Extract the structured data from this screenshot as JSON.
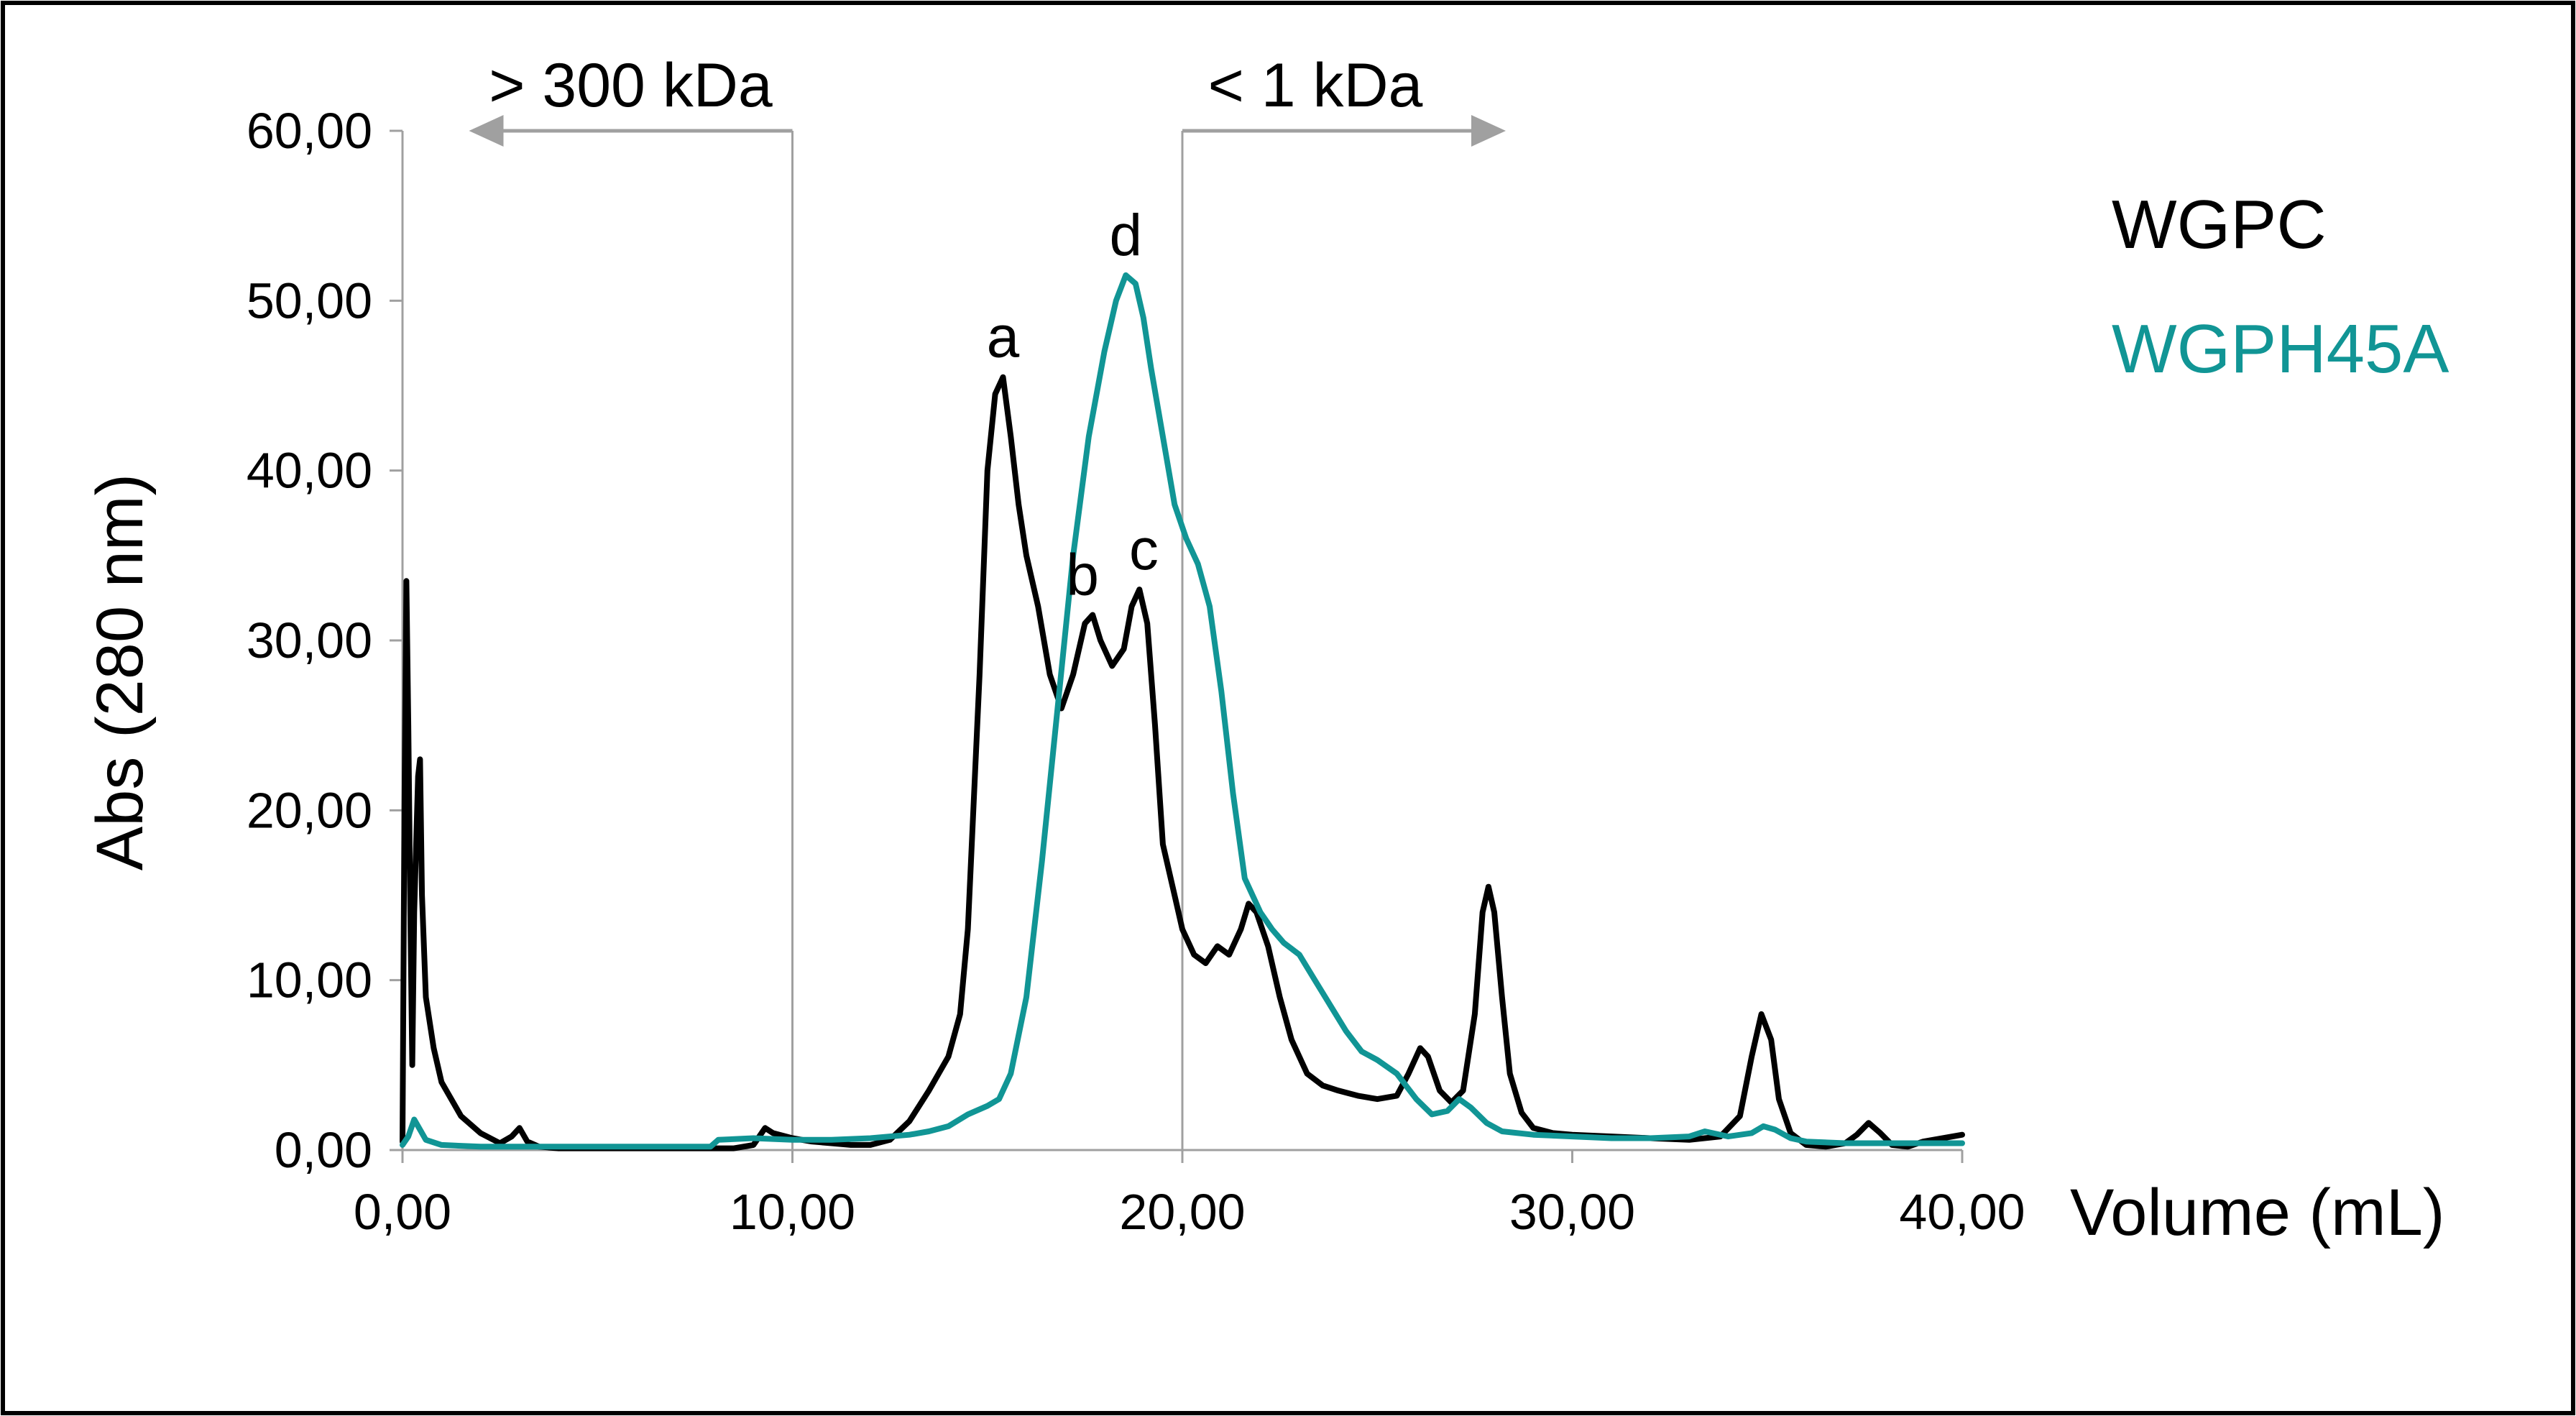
{
  "chart_data": {
    "type": "line",
    "xlabel": "Volume (mL)",
    "ylabel": "Abs (280 nm)",
    "xlim": [
      0,
      40
    ],
    "ylim": [
      0,
      60
    ],
    "xticks": [
      0,
      10,
      20,
      30,
      40
    ],
    "xtick_labels": [
      "0,00",
      "10,00",
      "20,00",
      "30,00",
      "40,00"
    ],
    "yticks": [
      0,
      10,
      20,
      30,
      40,
      50,
      60
    ],
    "ytick_labels": [
      "0,00",
      "10,00",
      "20,00",
      "30,00",
      "40,00",
      "50,00",
      "60,00"
    ],
    "grid": false,
    "legend_position": "top-right",
    "series": [
      {
        "name": "WGPC",
        "color": "#000000",
        "points": [
          [
            0,
            0.5
          ],
          [
            0.05,
            20
          ],
          [
            0.1,
            33.5
          ],
          [
            0.15,
            25
          ],
          [
            0.2,
            14
          ],
          [
            0.25,
            5
          ],
          [
            0.3,
            14
          ],
          [
            0.4,
            22
          ],
          [
            0.45,
            23
          ],
          [
            0.5,
            15
          ],
          [
            0.6,
            9
          ],
          [
            0.8,
            6
          ],
          [
            1,
            4
          ],
          [
            1.5,
            2
          ],
          [
            2,
            1
          ],
          [
            2.5,
            0.4
          ],
          [
            2.8,
            0.8
          ],
          [
            3,
            1.3
          ],
          [
            3.2,
            0.5
          ],
          [
            3.5,
            0.2
          ],
          [
            4,
            0.1
          ],
          [
            5,
            0.1
          ],
          [
            6,
            0.1
          ],
          [
            7,
            0.1
          ],
          [
            8,
            0.1
          ],
          [
            8.5,
            0.1
          ],
          [
            9,
            0.3
          ],
          [
            9.3,
            1.3
          ],
          [
            9.5,
            1
          ],
          [
            10,
            0.7
          ],
          [
            10.5,
            0.5
          ],
          [
            11,
            0.4
          ],
          [
            11.5,
            0.3
          ],
          [
            12,
            0.3
          ],
          [
            12.5,
            0.6
          ],
          [
            13,
            1.7
          ],
          [
            13.5,
            3.5
          ],
          [
            14,
            5.5
          ],
          [
            14.3,
            8
          ],
          [
            14.5,
            13
          ],
          [
            14.8,
            28
          ],
          [
            15,
            40
          ],
          [
            15.2,
            44.5
          ],
          [
            15.4,
            45.5
          ],
          [
            15.6,
            42
          ],
          [
            15.8,
            38
          ],
          [
            16,
            35
          ],
          [
            16.3,
            32
          ],
          [
            16.6,
            28
          ],
          [
            16.9,
            26
          ],
          [
            17.2,
            28
          ],
          [
            17.5,
            31
          ],
          [
            17.7,
            31.5
          ],
          [
            17.9,
            30
          ],
          [
            18.2,
            28.5
          ],
          [
            18.5,
            29.5
          ],
          [
            18.7,
            32
          ],
          [
            18.9,
            33
          ],
          [
            19.1,
            31
          ],
          [
            19.3,
            25
          ],
          [
            19.5,
            18
          ],
          [
            19.8,
            15
          ],
          [
            20,
            13
          ],
          [
            20.3,
            11.5
          ],
          [
            20.6,
            11
          ],
          [
            20.9,
            12
          ],
          [
            21.2,
            11.5
          ],
          [
            21.5,
            13
          ],
          [
            21.7,
            14.5
          ],
          [
            21.9,
            14
          ],
          [
            22.2,
            12
          ],
          [
            22.5,
            9
          ],
          [
            22.8,
            6.5
          ],
          [
            23.2,
            4.5
          ],
          [
            23.6,
            3.8
          ],
          [
            24,
            3.5
          ],
          [
            24.5,
            3.2
          ],
          [
            25,
            3
          ],
          [
            25.5,
            3.2
          ],
          [
            25.8,
            4.5
          ],
          [
            26.1,
            6
          ],
          [
            26.3,
            5.5
          ],
          [
            26.6,
            3.5
          ],
          [
            26.9,
            2.8
          ],
          [
            27.2,
            3.5
          ],
          [
            27.5,
            8
          ],
          [
            27.7,
            14
          ],
          [
            27.85,
            15.5
          ],
          [
            28,
            14
          ],
          [
            28.2,
            9
          ],
          [
            28.4,
            4.5
          ],
          [
            28.7,
            2.2
          ],
          [
            29,
            1.3
          ],
          [
            29.5,
            1
          ],
          [
            30,
            0.9
          ],
          [
            31,
            0.8
          ],
          [
            32,
            0.7
          ],
          [
            33,
            0.6
          ],
          [
            33.8,
            0.8
          ],
          [
            34.3,
            2
          ],
          [
            34.6,
            5.5
          ],
          [
            34.85,
            8
          ],
          [
            35.1,
            6.5
          ],
          [
            35.3,
            3
          ],
          [
            35.6,
            1
          ],
          [
            36,
            0.3
          ],
          [
            36.5,
            0.2
          ],
          [
            37,
            0.4
          ],
          [
            37.3,
            0.9
          ],
          [
            37.6,
            1.6
          ],
          [
            37.9,
            1
          ],
          [
            38.2,
            0.3
          ],
          [
            38.6,
            0.2
          ],
          [
            39,
            0.5
          ],
          [
            39.5,
            0.7
          ],
          [
            40,
            0.9
          ]
        ]
      },
      {
        "name": "WGPH45A",
        "color": "#119595",
        "points": [
          [
            0,
            0.3
          ],
          [
            0.15,
            0.8
          ],
          [
            0.3,
            1.8
          ],
          [
            0.45,
            1.2
          ],
          [
            0.6,
            0.6
          ],
          [
            1,
            0.3
          ],
          [
            2,
            0.2
          ],
          [
            4,
            0.2
          ],
          [
            6,
            0.2
          ],
          [
            7.9,
            0.2
          ],
          [
            8.1,
            0.6
          ],
          [
            9,
            0.7
          ],
          [
            10,
            0.6
          ],
          [
            11,
            0.6
          ],
          [
            12,
            0.7
          ],
          [
            13,
            0.9
          ],
          [
            13.5,
            1.1
          ],
          [
            14,
            1.4
          ],
          [
            14.5,
            2.1
          ],
          [
            15,
            2.6
          ],
          [
            15.3,
            3
          ],
          [
            15.6,
            4.5
          ],
          [
            16,
            9
          ],
          [
            16.4,
            17
          ],
          [
            16.8,
            26
          ],
          [
            17.2,
            35
          ],
          [
            17.6,
            42
          ],
          [
            18,
            47
          ],
          [
            18.3,
            50
          ],
          [
            18.55,
            51.5
          ],
          [
            18.8,
            51
          ],
          [
            19,
            49
          ],
          [
            19.2,
            46
          ],
          [
            19.5,
            42
          ],
          [
            19.8,
            38
          ],
          [
            20.1,
            36
          ],
          [
            20.4,
            34.5
          ],
          [
            20.7,
            32
          ],
          [
            21,
            27
          ],
          [
            21.3,
            21
          ],
          [
            21.6,
            16
          ],
          [
            22,
            14
          ],
          [
            22.3,
            13
          ],
          [
            22.6,
            12.2
          ],
          [
            23,
            11.5
          ],
          [
            23.4,
            10
          ],
          [
            23.8,
            8.5
          ],
          [
            24.2,
            7
          ],
          [
            24.6,
            5.8
          ],
          [
            25,
            5.3
          ],
          [
            25.5,
            4.5
          ],
          [
            26,
            3
          ],
          [
            26.4,
            2.1
          ],
          [
            26.8,
            2.3
          ],
          [
            27.1,
            3
          ],
          [
            27.4,
            2.5
          ],
          [
            27.8,
            1.6
          ],
          [
            28.2,
            1.1
          ],
          [
            29,
            0.9
          ],
          [
            30,
            0.8
          ],
          [
            31,
            0.7
          ],
          [
            32,
            0.7
          ],
          [
            33,
            0.8
          ],
          [
            33.4,
            1.1
          ],
          [
            34,
            0.8
          ],
          [
            34.6,
            1
          ],
          [
            34.9,
            1.4
          ],
          [
            35.2,
            1.2
          ],
          [
            35.6,
            0.7
          ],
          [
            36,
            0.5
          ],
          [
            37,
            0.4
          ],
          [
            38,
            0.4
          ],
          [
            39,
            0.4
          ],
          [
            40,
            0.4
          ]
        ]
      }
    ],
    "peak_labels": [
      {
        "label": "a",
        "x": 15.4,
        "y": 45.5
      },
      {
        "label": "b",
        "x": 17.7,
        "y": 31.5
      },
      {
        "label": "c",
        "x": 18.9,
        "y": 33
      },
      {
        "label": "d",
        "x": 18.55,
        "y": 51.5
      }
    ],
    "range_markers": [
      {
        "label": "> 300 kDa",
        "boundary_x": 10,
        "direction": "left"
      },
      {
        "label": "< 1 kDa",
        "boundary_x": 20,
        "direction": "right"
      }
    ],
    "guide_color": "#a0a0a0"
  }
}
